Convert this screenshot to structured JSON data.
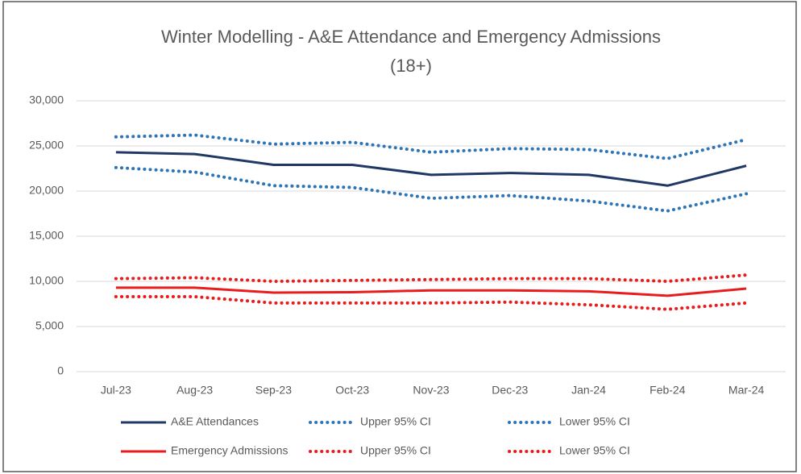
{
  "chart_data": {
    "type": "line",
    "title": [
      "Winter Modelling - A&E Attendance and Emergency Admissions",
      "(18+)"
    ],
    "categories": [
      "Jul-23",
      "Aug-23",
      "Sep-23",
      "Oct-23",
      "Nov-23",
      "Dec-23",
      "Jan-24",
      "Feb-24",
      "Mar-24"
    ],
    "series": [
      {
        "name": "A&E Attendances",
        "color": "#1f3864",
        "style": "solid",
        "values": [
          24300,
          24100,
          22900,
          22900,
          21800,
          22000,
          21800,
          20600,
          22800
        ]
      },
      {
        "name": "Upper 95% CI",
        "color": "#2e75b6",
        "style": "dotted",
        "values": [
          26000,
          26200,
          25200,
          25400,
          24300,
          24700,
          24600,
          23600,
          25700
        ]
      },
      {
        "name": "Lower 95% CI",
        "color": "#2e75b6",
        "style": "dotted",
        "values": [
          22600,
          22100,
          20600,
          20400,
          19200,
          19500,
          18900,
          17800,
          19700
        ]
      },
      {
        "name": "Emergency Admissions",
        "color": "#e81c1c",
        "style": "solid",
        "values": [
          9300,
          9300,
          8750,
          8800,
          9000,
          9000,
          8900,
          8400,
          9200
        ]
      },
      {
        "name": "Upper 95% CI",
        "color": "#e81c1c",
        "style": "dotted",
        "values": [
          10300,
          10400,
          10000,
          10100,
          10200,
          10300,
          10300,
          10000,
          10700
        ]
      },
      {
        "name": "Lower 95% CI",
        "color": "#e81c1c",
        "style": "dotted",
        "values": [
          8300,
          8300,
          7600,
          7600,
          7600,
          7700,
          7400,
          6900,
          7600
        ]
      }
    ],
    "ylim": [
      0,
      30000
    ],
    "yticks": [
      0,
      {
        "value": 5000,
        "label": "5,000"
      },
      {
        "value": 10000,
        "label": "10,000"
      },
      {
        "value": 15000,
        "label": "15,000"
      },
      {
        "value": 20000,
        "label": "20,000"
      },
      {
        "value": 25000,
        "label": "25,000"
      },
      {
        "value": 30000,
        "label": "30,000"
      }
    ],
    "grid": true,
    "legend": "bottom"
  }
}
